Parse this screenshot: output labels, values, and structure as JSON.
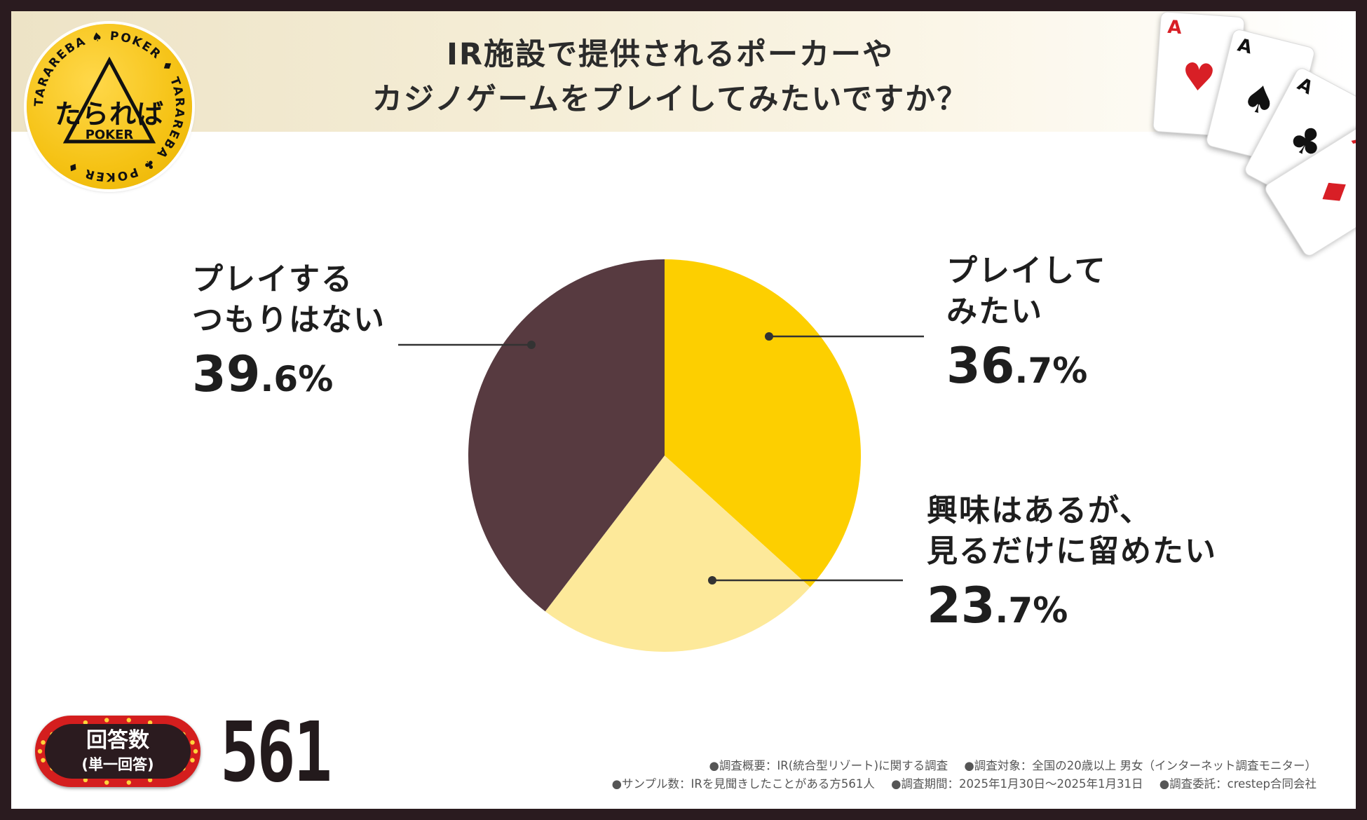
{
  "title": {
    "line1": "IR施設で提供されるポーカーや",
    "line2": "カジノゲームをプレイしてみたいですか？"
  },
  "logo": {
    "main": "たられば",
    "sub": "POKER",
    "ring_text": "TARAREBA ♠ POKER ♦ TARAREBA ♣ POKER ♦"
  },
  "cards": [
    {
      "rank": "A",
      "suit": "♥"
    },
    {
      "rank": "A",
      "suit": "♠"
    },
    {
      "rank": "A",
      "suit": "♣"
    },
    {
      "rank": "A",
      "suit": "♦"
    }
  ],
  "chart_data": {
    "type": "pie",
    "start": "top",
    "direction": "clockwise",
    "slices": [
      {
        "label_line1": "プレイして",
        "label_line2": "みたい",
        "value": 36.7,
        "int": "36",
        "dec": ".7%",
        "color": "#fdcf00"
      },
      {
        "label_line1": "興味はあるが、",
        "label_line2": "見るだけに留めたい",
        "value": 23.7,
        "int": "23",
        "dec": ".7%",
        "color": "#fde99a"
      },
      {
        "label_line1": "プレイする",
        "label_line2": "つもりはない",
        "value": 39.6,
        "int": "39",
        "dec": ".6%",
        "color": "#573a40"
      }
    ]
  },
  "respondents": {
    "badge_main": "回答数",
    "badge_sub": "(単一回答)",
    "count": "561"
  },
  "notes": {
    "survey_overview": "●調査概要：IR(統合型リゾート)に関する調査",
    "survey_target": "●調査対象：全国の20歳以上 男女（インターネット調査モニター）",
    "sample_size": "●サンプル数：IRを見聞きしたことがある方561人",
    "survey_period": "●調査期間：2025年1月30日～2025年1月31日",
    "commissioned_by": "●調査委託：crestep合同会社"
  },
  "colors": {
    "frame": "#2a1b1f",
    "accent_yellow": "#fdcf00",
    "light_yellow": "#fde99a",
    "brown": "#573a40",
    "badge_red": "#d41e1e"
  }
}
